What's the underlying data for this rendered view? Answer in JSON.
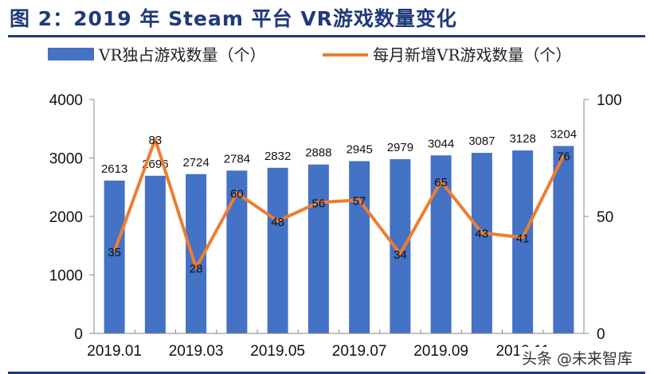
{
  "title": "图 2：2019 年 Steam 平台 VR游戏数量变化",
  "watermark": "头条 @未来智库",
  "chart_data": {
    "type": "bar+line",
    "title": "图 2：2019 年 Steam 平台 VR游戏数量变化",
    "categories": [
      "2019.01",
      "2019.02",
      "2019.03",
      "2019.04",
      "2019.05",
      "2019.06",
      "2019.07",
      "2019.08",
      "2019.09",
      "2019.10",
      "2019.11",
      "2019.12"
    ],
    "xtick_labels": [
      "2019.01",
      "2019.03",
      "2019.05",
      "2019.07",
      "2019.09",
      "2019.11"
    ],
    "series": [
      {
        "name": "VR独占游戏数量（个）",
        "type": "bar",
        "axis": "left",
        "color": "#4472c4",
        "values": [
          2613,
          2696,
          2724,
          2784,
          2832,
          2888,
          2945,
          2979,
          3044,
          3087,
          3128,
          3204
        ]
      },
      {
        "name": "每月新增VR游戏数量（个）",
        "type": "line",
        "axis": "right",
        "color": "#ed7d31",
        "values": [
          35,
          83,
          28,
          60,
          48,
          56,
          57,
          34,
          65,
          43,
          41,
          76
        ]
      }
    ],
    "ylim_left": [
      0,
      4000
    ],
    "yticks_left": [
      "0",
      "1000",
      "2000",
      "3000",
      "4000"
    ],
    "ylim_right": [
      0,
      100
    ],
    "yticks_right": [
      "0",
      "50",
      "100"
    ],
    "legend": "top",
    "grid": false
  }
}
